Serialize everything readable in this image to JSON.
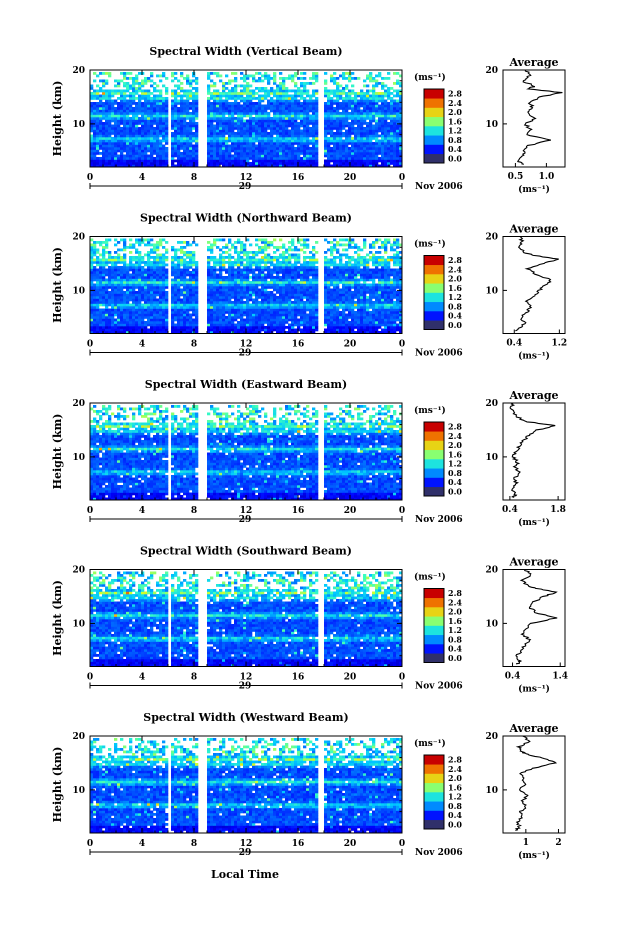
{
  "figure": {
    "xlabel": "Local Time",
    "date_label": "Nov 2006",
    "day_label": "29",
    "ylabel": "Height (km)",
    "colorbar_unit": "(ms⁻¹)",
    "avg_title": "Average",
    "avg_xlabel": "(ms⁻¹)"
  },
  "chart_data": [
    {
      "type": "heatmap",
      "title": "Spectral Width (Vertical Beam)",
      "x_range": [
        0,
        24
      ],
      "y_range": [
        2,
        20
      ],
      "xticks": [
        "0",
        "4",
        "8",
        "12",
        "16",
        "20",
        "0"
      ],
      "yticks": [
        "10",
        "20"
      ],
      "colorbar_ticks": [
        "2.8",
        "2.4",
        "2.0",
        "1.6",
        "1.2",
        "0.8",
        "0.4",
        "0.0"
      ],
      "colorbar_range": [
        0,
        3.0
      ],
      "gaps_hours": [
        [
          5.9,
          6.3
        ],
        [
          8.3,
          9.1
        ],
        [
          17.6,
          17.9
        ]
      ],
      "avg_title": "Average",
      "avg_xticks": [
        "0.5",
        "1.0"
      ],
      "avg_xlim": [
        0.3,
        1.3
      ],
      "avg_profile": [
        [
          2.5,
          0.62
        ],
        [
          3,
          0.55
        ],
        [
          4,
          0.6
        ],
        [
          5,
          0.65
        ],
        [
          6,
          0.72
        ],
        [
          7,
          1.05
        ],
        [
          8,
          0.68
        ],
        [
          9,
          0.74
        ],
        [
          10,
          0.66
        ],
        [
          11,
          0.82
        ],
        [
          12,
          0.7
        ],
        [
          13,
          0.78
        ],
        [
          14,
          0.72
        ],
        [
          15,
          0.9
        ],
        [
          15.8,
          1.25
        ],
        [
          16.5,
          0.72
        ],
        [
          17,
          0.8
        ],
        [
          18,
          0.62
        ],
        [
          19,
          0.74
        ],
        [
          20,
          0.66
        ]
      ]
    },
    {
      "type": "heatmap",
      "title": "Spectral Width (Northward Beam)",
      "x_range": [
        0,
        24
      ],
      "y_range": [
        2,
        20
      ],
      "xticks": [
        "0",
        "4",
        "8",
        "12",
        "16",
        "20",
        "0"
      ],
      "yticks": [
        "10",
        "20"
      ],
      "colorbar_ticks": [
        "2.8",
        "2.4",
        "2.0",
        "1.6",
        "1.2",
        "0.8",
        "0.4",
        "0.0"
      ],
      "colorbar_range": [
        0,
        3.0
      ],
      "gaps_hours": [
        [
          5.9,
          6.3
        ],
        [
          8.3,
          9.1
        ],
        [
          17.6,
          17.9
        ]
      ],
      "avg_title": "Average",
      "avg_xticks": [
        "0.4",
        "1.2"
      ],
      "avg_xlim": [
        0.2,
        1.3
      ],
      "avg_profile": [
        [
          2.5,
          0.45
        ],
        [
          3,
          0.5
        ],
        [
          4,
          0.58
        ],
        [
          5,
          0.52
        ],
        [
          6,
          0.62
        ],
        [
          7,
          0.7
        ],
        [
          8,
          0.6
        ],
        [
          9,
          0.75
        ],
        [
          10,
          0.85
        ],
        [
          11,
          0.95
        ],
        [
          12,
          1.05
        ],
        [
          13,
          0.78
        ],
        [
          14,
          0.65
        ],
        [
          15,
          0.9
        ],
        [
          15.8,
          1.2
        ],
        [
          16.5,
          0.75
        ],
        [
          17,
          0.6
        ],
        [
          18,
          0.45
        ],
        [
          19,
          0.55
        ],
        [
          20,
          0.5
        ]
      ]
    },
    {
      "type": "heatmap",
      "title": "Spectral Width (Eastward Beam)",
      "x_range": [
        0,
        24
      ],
      "y_range": [
        2,
        20
      ],
      "xticks": [
        "0",
        "4",
        "8",
        "12",
        "16",
        "20",
        "0"
      ],
      "yticks": [
        "10",
        "20"
      ],
      "colorbar_ticks": [
        "2.8",
        "2.4",
        "2.0",
        "1.6",
        "1.2",
        "0.8",
        "0.4",
        "0.0"
      ],
      "colorbar_range": [
        0,
        3.0
      ],
      "gaps_hours": [
        [
          5.9,
          6.3
        ],
        [
          8.3,
          9.1
        ],
        [
          17.6,
          17.9
        ]
      ],
      "avg_title": "Average",
      "avg_xticks": [
        "0.4",
        "1.8"
      ],
      "avg_xlim": [
        0.2,
        2.0
      ],
      "avg_profile": [
        [
          2.5,
          0.5
        ],
        [
          3,
          0.55
        ],
        [
          4,
          0.45
        ],
        [
          5,
          0.6
        ],
        [
          6,
          0.5
        ],
        [
          7,
          0.7
        ],
        [
          8,
          0.55
        ],
        [
          9,
          0.62
        ],
        [
          10,
          0.5
        ],
        [
          11,
          0.58
        ],
        [
          12,
          0.66
        ],
        [
          13,
          0.8
        ],
        [
          14,
          0.95
        ],
        [
          15,
          1.2
        ],
        [
          15.8,
          1.75
        ],
        [
          16.5,
          0.9
        ],
        [
          17,
          0.7
        ],
        [
          18,
          0.55
        ],
        [
          19,
          0.45
        ],
        [
          20,
          0.5
        ]
      ]
    },
    {
      "type": "heatmap",
      "title": "Spectral Width (Southward Beam)",
      "x_range": [
        0,
        24
      ],
      "y_range": [
        2,
        20
      ],
      "xticks": [
        "0",
        "4",
        "8",
        "12",
        "16",
        "20",
        "0"
      ],
      "yticks": [
        "10",
        "20"
      ],
      "colorbar_ticks": [
        "2.8",
        "2.4",
        "2.0",
        "1.6",
        "1.2",
        "0.8",
        "0.4",
        "0.0"
      ],
      "colorbar_range": [
        0,
        3.0
      ],
      "gaps_hours": [
        [
          5.9,
          6.3
        ],
        [
          8.3,
          9.1
        ],
        [
          17.6,
          17.9
        ]
      ],
      "avg_title": "Average",
      "avg_xticks": [
        "0.4",
        "1.4"
      ],
      "avg_xlim": [
        0.2,
        1.5
      ],
      "avg_profile": [
        [
          2.5,
          0.5
        ],
        [
          3,
          0.55
        ],
        [
          4,
          0.48
        ],
        [
          5,
          0.6
        ],
        [
          6,
          0.66
        ],
        [
          7,
          0.75
        ],
        [
          8,
          0.6
        ],
        [
          9,
          0.7
        ],
        [
          10,
          0.8
        ],
        [
          11,
          1.3
        ],
        [
          12,
          0.9
        ],
        [
          13,
          0.75
        ],
        [
          14,
          0.85
        ],
        [
          15,
          1.05
        ],
        [
          15.8,
          1.35
        ],
        [
          16.5,
          0.9
        ],
        [
          17,
          0.7
        ],
        [
          18,
          0.6
        ],
        [
          19,
          0.8
        ],
        [
          20,
          0.65
        ]
      ]
    },
    {
      "type": "heatmap",
      "title": "Spectral Width (Westward Beam)",
      "x_range": [
        0,
        24
      ],
      "y_range": [
        2,
        20
      ],
      "xticks": [
        "0",
        "4",
        "8",
        "12",
        "16",
        "20",
        "0"
      ],
      "yticks": [
        "10",
        "20"
      ],
      "colorbar_ticks": [
        "2.8",
        "2.4",
        "2.0",
        "1.6",
        "1.2",
        "0.8",
        "0.4",
        "0.0"
      ],
      "colorbar_range": [
        0,
        3.0
      ],
      "gaps_hours": [
        [
          5.9,
          6.3
        ],
        [
          8.3,
          9.1
        ],
        [
          17.6,
          17.9
        ]
      ],
      "avg_title": "Average",
      "avg_xticks": [
        "1",
        "2"
      ],
      "avg_xlim": [
        0.3,
        2.2
      ],
      "avg_profile": [
        [
          2.5,
          0.7
        ],
        [
          3,
          0.8
        ],
        [
          4,
          0.75
        ],
        [
          5,
          0.9
        ],
        [
          6,
          0.85
        ],
        [
          7,
          1.0
        ],
        [
          8,
          0.9
        ],
        [
          9,
          1.05
        ],
        [
          10,
          0.85
        ],
        [
          11,
          0.95
        ],
        [
          12,
          0.9
        ],
        [
          13,
          0.85
        ],
        [
          14,
          1.2
        ],
        [
          15,
          1.9
        ],
        [
          15.8,
          1.6
        ],
        [
          16.5,
          1.1
        ],
        [
          17,
          0.9
        ],
        [
          18,
          0.8
        ],
        [
          19,
          1.1
        ],
        [
          20,
          0.9
        ]
      ]
    }
  ]
}
